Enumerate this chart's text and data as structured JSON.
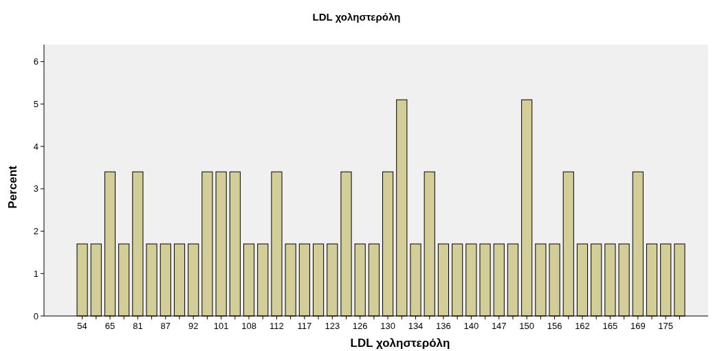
{
  "chart_data": {
    "type": "bar",
    "title": "LDL χοληστερόλη",
    "xlabel": "LDL χοληστερόλη",
    "ylabel": "Percent",
    "categories": [
      "54",
      null,
      "65",
      null,
      "81",
      null,
      "87",
      null,
      "92",
      null,
      "101",
      null,
      "108",
      null,
      "112",
      null,
      "117",
      null,
      "123",
      null,
      "126",
      null,
      "130",
      null,
      "134",
      null,
      "136",
      null,
      "140",
      null,
      "147",
      null,
      "150",
      null,
      "156",
      null,
      "162",
      null,
      "165",
      null,
      "169",
      null,
      "175",
      null
    ],
    "values": [
      1.7,
      1.7,
      3.4,
      1.7,
      3.4,
      1.7,
      1.7,
      1.7,
      1.7,
      3.4,
      3.4,
      3.4,
      1.7,
      1.7,
      3.4,
      1.7,
      1.7,
      1.7,
      1.7,
      3.4,
      1.7,
      1.7,
      3.4,
      5.1,
      1.7,
      3.4,
      1.7,
      1.7,
      1.7,
      1.7,
      1.7,
      1.7,
      5.1,
      1.7,
      1.7,
      3.4,
      1.7,
      1.7,
      1.7,
      1.7,
      3.4,
      1.7,
      1.7,
      1.7
    ],
    "color": "#d3ce97",
    "ylim": [
      0,
      6.4
    ],
    "yticks": [
      0,
      1,
      2,
      3,
      4,
      5,
      6
    ],
    "grid": false
  }
}
